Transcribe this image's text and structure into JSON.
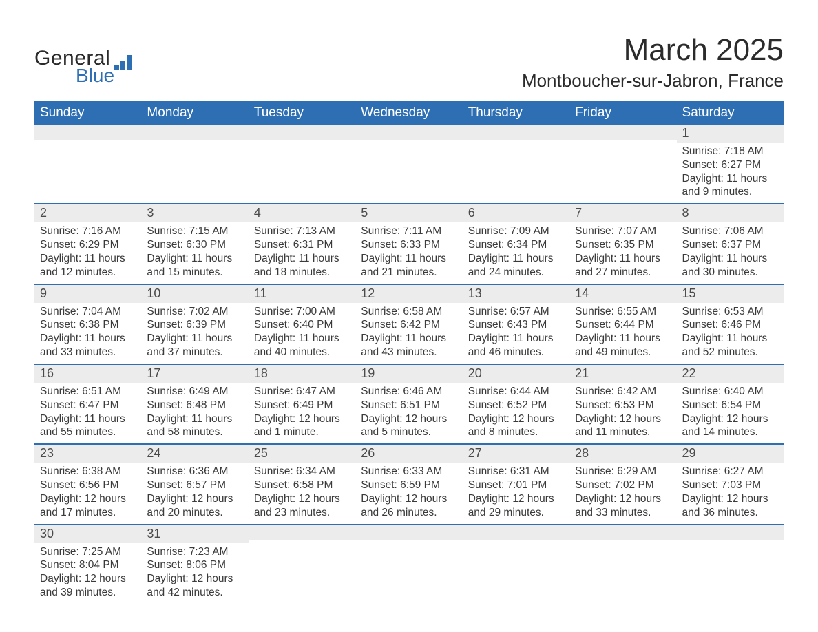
{
  "brand": {
    "name_part1": "General",
    "name_part2": "Blue",
    "color": "#2e6fb4"
  },
  "header": {
    "month_title": "March 2025",
    "location": "Montboucher-sur-Jabron, France"
  },
  "colors": {
    "header_bg": "#2e6fb4",
    "header_text": "#ffffff",
    "daynum_bg": "#ececec",
    "row_border": "#2e6fb4",
    "body_text": "#3a3a3a",
    "page_bg": "#ffffff"
  },
  "typography": {
    "month_title_fontsize_pt": 33,
    "location_fontsize_pt": 20,
    "dayheader_fontsize_pt": 14,
    "daynum_fontsize_pt": 14,
    "body_fontsize_pt": 12,
    "font_family": "Arial"
  },
  "calendar": {
    "day_headers": [
      "Sunday",
      "Monday",
      "Tuesday",
      "Wednesday",
      "Thursday",
      "Friday",
      "Saturday"
    ],
    "weeks": [
      [
        null,
        null,
        null,
        null,
        null,
        null,
        {
          "n": "1",
          "sunrise": "Sunrise: 7:18 AM",
          "sunset": "Sunset: 6:27 PM",
          "daylight": "Daylight: 11 hours and 9 minutes."
        }
      ],
      [
        {
          "n": "2",
          "sunrise": "Sunrise: 7:16 AM",
          "sunset": "Sunset: 6:29 PM",
          "daylight": "Daylight: 11 hours and 12 minutes."
        },
        {
          "n": "3",
          "sunrise": "Sunrise: 7:15 AM",
          "sunset": "Sunset: 6:30 PM",
          "daylight": "Daylight: 11 hours and 15 minutes."
        },
        {
          "n": "4",
          "sunrise": "Sunrise: 7:13 AM",
          "sunset": "Sunset: 6:31 PM",
          "daylight": "Daylight: 11 hours and 18 minutes."
        },
        {
          "n": "5",
          "sunrise": "Sunrise: 7:11 AM",
          "sunset": "Sunset: 6:33 PM",
          "daylight": "Daylight: 11 hours and 21 minutes."
        },
        {
          "n": "6",
          "sunrise": "Sunrise: 7:09 AM",
          "sunset": "Sunset: 6:34 PM",
          "daylight": "Daylight: 11 hours and 24 minutes."
        },
        {
          "n": "7",
          "sunrise": "Sunrise: 7:07 AM",
          "sunset": "Sunset: 6:35 PM",
          "daylight": "Daylight: 11 hours and 27 minutes."
        },
        {
          "n": "8",
          "sunrise": "Sunrise: 7:06 AM",
          "sunset": "Sunset: 6:37 PM",
          "daylight": "Daylight: 11 hours and 30 minutes."
        }
      ],
      [
        {
          "n": "9",
          "sunrise": "Sunrise: 7:04 AM",
          "sunset": "Sunset: 6:38 PM",
          "daylight": "Daylight: 11 hours and 33 minutes."
        },
        {
          "n": "10",
          "sunrise": "Sunrise: 7:02 AM",
          "sunset": "Sunset: 6:39 PM",
          "daylight": "Daylight: 11 hours and 37 minutes."
        },
        {
          "n": "11",
          "sunrise": "Sunrise: 7:00 AM",
          "sunset": "Sunset: 6:40 PM",
          "daylight": "Daylight: 11 hours and 40 minutes."
        },
        {
          "n": "12",
          "sunrise": "Sunrise: 6:58 AM",
          "sunset": "Sunset: 6:42 PM",
          "daylight": "Daylight: 11 hours and 43 minutes."
        },
        {
          "n": "13",
          "sunrise": "Sunrise: 6:57 AM",
          "sunset": "Sunset: 6:43 PM",
          "daylight": "Daylight: 11 hours and 46 minutes."
        },
        {
          "n": "14",
          "sunrise": "Sunrise: 6:55 AM",
          "sunset": "Sunset: 6:44 PM",
          "daylight": "Daylight: 11 hours and 49 minutes."
        },
        {
          "n": "15",
          "sunrise": "Sunrise: 6:53 AM",
          "sunset": "Sunset: 6:46 PM",
          "daylight": "Daylight: 11 hours and 52 minutes."
        }
      ],
      [
        {
          "n": "16",
          "sunrise": "Sunrise: 6:51 AM",
          "sunset": "Sunset: 6:47 PM",
          "daylight": "Daylight: 11 hours and 55 minutes."
        },
        {
          "n": "17",
          "sunrise": "Sunrise: 6:49 AM",
          "sunset": "Sunset: 6:48 PM",
          "daylight": "Daylight: 11 hours and 58 minutes."
        },
        {
          "n": "18",
          "sunrise": "Sunrise: 6:47 AM",
          "sunset": "Sunset: 6:49 PM",
          "daylight": "Daylight: 12 hours and 1 minute."
        },
        {
          "n": "19",
          "sunrise": "Sunrise: 6:46 AM",
          "sunset": "Sunset: 6:51 PM",
          "daylight": "Daylight: 12 hours and 5 minutes."
        },
        {
          "n": "20",
          "sunrise": "Sunrise: 6:44 AM",
          "sunset": "Sunset: 6:52 PM",
          "daylight": "Daylight: 12 hours and 8 minutes."
        },
        {
          "n": "21",
          "sunrise": "Sunrise: 6:42 AM",
          "sunset": "Sunset: 6:53 PM",
          "daylight": "Daylight: 12 hours and 11 minutes."
        },
        {
          "n": "22",
          "sunrise": "Sunrise: 6:40 AM",
          "sunset": "Sunset: 6:54 PM",
          "daylight": "Daylight: 12 hours and 14 minutes."
        }
      ],
      [
        {
          "n": "23",
          "sunrise": "Sunrise: 6:38 AM",
          "sunset": "Sunset: 6:56 PM",
          "daylight": "Daylight: 12 hours and 17 minutes."
        },
        {
          "n": "24",
          "sunrise": "Sunrise: 6:36 AM",
          "sunset": "Sunset: 6:57 PM",
          "daylight": "Daylight: 12 hours and 20 minutes."
        },
        {
          "n": "25",
          "sunrise": "Sunrise: 6:34 AM",
          "sunset": "Sunset: 6:58 PM",
          "daylight": "Daylight: 12 hours and 23 minutes."
        },
        {
          "n": "26",
          "sunrise": "Sunrise: 6:33 AM",
          "sunset": "Sunset: 6:59 PM",
          "daylight": "Daylight: 12 hours and 26 minutes."
        },
        {
          "n": "27",
          "sunrise": "Sunrise: 6:31 AM",
          "sunset": "Sunset: 7:01 PM",
          "daylight": "Daylight: 12 hours and 29 minutes."
        },
        {
          "n": "28",
          "sunrise": "Sunrise: 6:29 AM",
          "sunset": "Sunset: 7:02 PM",
          "daylight": "Daylight: 12 hours and 33 minutes."
        },
        {
          "n": "29",
          "sunrise": "Sunrise: 6:27 AM",
          "sunset": "Sunset: 7:03 PM",
          "daylight": "Daylight: 12 hours and 36 minutes."
        }
      ],
      [
        {
          "n": "30",
          "sunrise": "Sunrise: 7:25 AM",
          "sunset": "Sunset: 8:04 PM",
          "daylight": "Daylight: 12 hours and 39 minutes."
        },
        {
          "n": "31",
          "sunrise": "Sunrise: 7:23 AM",
          "sunset": "Sunset: 8:06 PM",
          "daylight": "Daylight: 12 hours and 42 minutes."
        },
        null,
        null,
        null,
        null,
        null
      ]
    ]
  }
}
